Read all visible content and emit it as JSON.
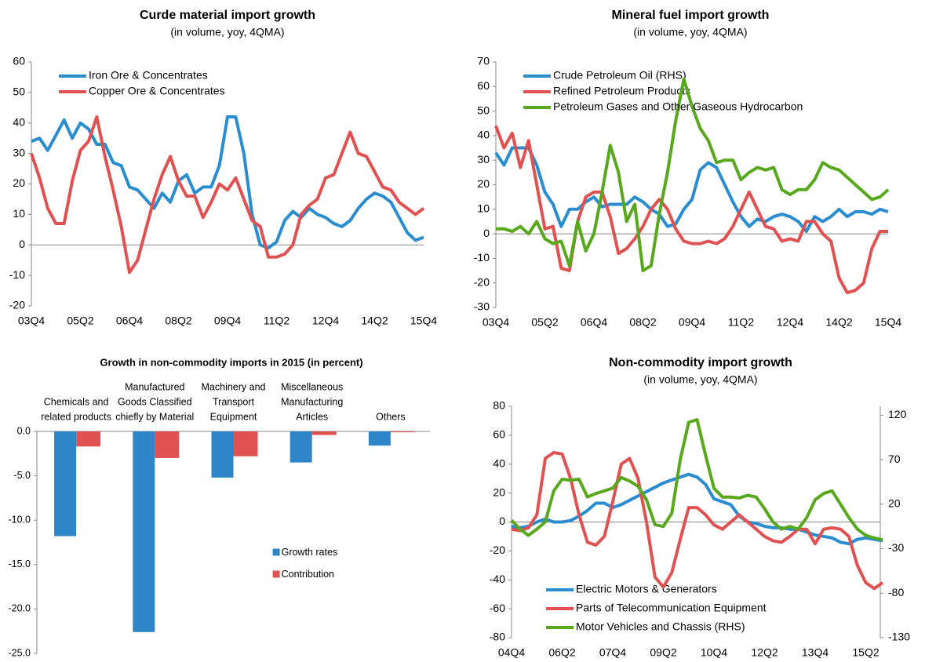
{
  "chart_data": [
    {
      "type": "line",
      "title": "Curde material import growth",
      "subtitle": "(in volume, yoy, 4QMA)",
      "categories": [
        "03Q4",
        null,
        null,
        null,
        null,
        null,
        "05Q2",
        null,
        null,
        null,
        null,
        null,
        "06Q4",
        null,
        null,
        null,
        null,
        null,
        "08Q2",
        null,
        null,
        null,
        null,
        null,
        "09Q4",
        null,
        null,
        null,
        null,
        null,
        "11Q2",
        null,
        null,
        null,
        null,
        null,
        "12Q4",
        null,
        null,
        null,
        null,
        null,
        "14Q2",
        null,
        null,
        null,
        null,
        null,
        "15Q4"
      ],
      "series": [
        {
          "name": "Iron Ore & Concentrates",
          "color": "#2a8dd0",
          "values": [
            34,
            35,
            31,
            36,
            41,
            35,
            40,
            38,
            33,
            33,
            27,
            26,
            19,
            18,
            15,
            12,
            17,
            14,
            21,
            23,
            17,
            19,
            19,
            26,
            42,
            42,
            30,
            10,
            0,
            -1,
            1,
            8,
            11,
            9,
            12,
            10,
            9,
            7,
            6,
            8,
            12,
            15,
            17,
            16,
            14,
            9,
            4,
            1.5,
            2.5
          ]
        },
        {
          "name": "Copper Ore & Concentrates",
          "color": "#e05252",
          "values": [
            30,
            22,
            12,
            7,
            7,
            21,
            31,
            34,
            42,
            29,
            18,
            6,
            -9,
            -5,
            5,
            15,
            23,
            29,
            21,
            16,
            16,
            9,
            14,
            20,
            18,
            22,
            15,
            8,
            6,
            -4,
            -4,
            -3,
            0,
            10,
            13,
            15,
            22,
            23,
            30,
            37,
            30,
            29,
            24,
            19,
            18,
            14,
            12,
            10,
            12
          ]
        }
      ],
      "ylim": [
        -20,
        60
      ],
      "yticks": [
        -20,
        -10,
        0,
        10,
        20,
        30,
        40,
        50,
        60
      ],
      "legend": "upper left"
    },
    {
      "type": "line",
      "title": "Mineral fuel import growth",
      "subtitle": "(in volume, yoy, 4QMA)",
      "categories": [
        "03Q4",
        null,
        null,
        null,
        null,
        null,
        "05Q2",
        null,
        null,
        null,
        null,
        null,
        "06Q4",
        null,
        null,
        null,
        null,
        null,
        "08Q2",
        null,
        null,
        null,
        null,
        null,
        "09Q4",
        null,
        null,
        null,
        null,
        null,
        "11Q2",
        null,
        null,
        null,
        null,
        null,
        "12Q4",
        null,
        null,
        null,
        null,
        null,
        "14Q2",
        null,
        null,
        null,
        null,
        null,
        "15Q4"
      ],
      "series": [
        {
          "name": "Crude Petroleum Oil (RHS)",
          "color": "#2a8dd0",
          "values": [
            33,
            28,
            35,
            35,
            35,
            28,
            17,
            12,
            3,
            10,
            10,
            13,
            15,
            11,
            12,
            12,
            12,
            15,
            13,
            10,
            8,
            3,
            4,
            10,
            14,
            26,
            29,
            27,
            20,
            13,
            7,
            3,
            6,
            5,
            7,
            8,
            7,
            5,
            1,
            7,
            5,
            7,
            10,
            7,
            9,
            9,
            8,
            10,
            9
          ]
        },
        {
          "name": "Refined Petroleum Products",
          "color": "#e05252",
          "values": [
            44,
            35,
            41,
            27,
            38,
            20,
            2,
            3,
            -14,
            -15,
            5,
            15,
            17,
            17,
            7,
            -8,
            -6,
            -2,
            3,
            10,
            14,
            10,
            2,
            -3,
            -4,
            -4,
            -3,
            -4,
            -2,
            3,
            10,
            17,
            10,
            3,
            2,
            -3,
            -2,
            -3,
            5,
            5,
            0,
            -3,
            -18,
            -24,
            -23,
            -20,
            -6,
            1,
            1
          ]
        },
        {
          "name": "Petroleum Gases and Other Gaseous Hydrocarbon",
          "color": "#58a81d",
          "values": [
            2,
            2,
            1,
            3,
            0,
            5,
            -2,
            -4,
            -3,
            -13,
            5,
            -7,
            0,
            17,
            36,
            25,
            5,
            12,
            -15,
            -13,
            8,
            25,
            46,
            63,
            52,
            43,
            38,
            29,
            30,
            30,
            22,
            25,
            27,
            26,
            27,
            18,
            16,
            18,
            18,
            22,
            29,
            27,
            26,
            23,
            20,
            17,
            14,
            15,
            18
          ]
        }
      ],
      "ylim": [
        -30,
        70
      ],
      "yticks": [
        -30,
        -20,
        -10,
        0,
        10,
        20,
        30,
        40,
        50,
        60,
        70
      ],
      "legend": "upper left"
    },
    {
      "type": "bar",
      "title": "Growth in non-commodity imports in 2015 (in percent)",
      "categories": [
        [
          "Chemicals and",
          "related products"
        ],
        [
          "Manufactured",
          "Goods Classified",
          "chiefly by Material"
        ],
        [
          "Machinery and",
          "Transport",
          "Equipment"
        ],
        [
          "Miscellaneous",
          "Manufacturing",
          "Articles"
        ],
        [
          "Others"
        ]
      ],
      "series": [
        {
          "name": "Growth rates",
          "color": "#2e86c8",
          "values": [
            -11.8,
            -22.6,
            -5.2,
            -3.5,
            -1.6
          ]
        },
        {
          "name": "Contribution",
          "color": "#e05252",
          "values": [
            -1.7,
            -3.0,
            -2.8,
            -0.4,
            -0.1
          ]
        }
      ],
      "ylim": [
        -25,
        0
      ],
      "yticks": [
        {
          "value": -25,
          "label": "-25.0"
        },
        {
          "value": -20,
          "label": "-20.0"
        },
        {
          "value": -15,
          "label": "-15.0"
        },
        {
          "value": -10,
          "label": "-10.0"
        },
        {
          "value": -5,
          "label": "-5.0"
        },
        {
          "value": 0,
          "label": "0.0"
        }
      ],
      "legend": "center right"
    },
    {
      "type": "line",
      "title": "Non-commodity import growth",
      "subtitle": "(in volume, yoy, 4QMA)",
      "categories": [
        "04Q4",
        null,
        null,
        null,
        null,
        null,
        "06Q2",
        null,
        null,
        null,
        null,
        null,
        "07Q4",
        null,
        null,
        null,
        null,
        null,
        "09Q2",
        null,
        null,
        null,
        null,
        null,
        "10Q4",
        null,
        null,
        null,
        null,
        null,
        "12Q2",
        null,
        null,
        null,
        null,
        null,
        "13Q4",
        null,
        null,
        null,
        null,
        null,
        "15Q2",
        null,
        null
      ],
      "series": [
        {
          "name": "Electric Motors & Generators",
          "color": "#2a8dd0",
          "values": [
            -3,
            -4,
            -3,
            0,
            2,
            0,
            0,
            1,
            4,
            8,
            13,
            13,
            10,
            12,
            15,
            18,
            21,
            24,
            27,
            29,
            31,
            33,
            31,
            26,
            16,
            14,
            12,
            4,
            0,
            -1,
            -3,
            -4,
            -4,
            -5,
            -5,
            -7,
            -9,
            -10,
            -11,
            -14,
            -15,
            -12,
            -11,
            -12,
            -13
          ]
        },
        {
          "name": "Parts of Telecommunication Equipment",
          "color": "#e05252",
          "values": [
            -5,
            -6,
            -4,
            5,
            44,
            48,
            47,
            30,
            5,
            -14,
            -16,
            -10,
            14,
            40,
            44,
            30,
            0,
            -38,
            -45,
            -35,
            -12,
            10,
            10,
            5,
            -2,
            -5,
            0,
            5,
            0,
            -5,
            -10,
            -13,
            -14,
            -10,
            -5,
            -5,
            -15,
            -5,
            -4,
            -5,
            -10,
            -30,
            -42,
            -46,
            -42
          ]
        },
        {
          "name": "Motor Vehicles and Chassis (RHS)",
          "color": "#58a81d",
          "axis": "y2",
          "values": [
            2,
            -8,
            -15,
            -8,
            0,
            35,
            48,
            47,
            48,
            28,
            32,
            35,
            38,
            50,
            46,
            40,
            25,
            -3,
            -5,
            10,
            70,
            112,
            115,
            75,
            38,
            28,
            28,
            27,
            30,
            28,
            15,
            0,
            -8,
            -5,
            -8,
            5,
            25,
            32,
            35,
            20,
            5,
            -8,
            -15,
            -18,
            -20
          ]
        }
      ],
      "ylim": [
        -80,
        80
      ],
      "yticks": [
        -80,
        -60,
        -40,
        -20,
        0,
        20,
        40,
        60,
        80
      ],
      "y2lim": [
        -130,
        130
      ],
      "y2ticks": [
        -130,
        -80,
        -30,
        20,
        70,
        120
      ],
      "legend": "lower left"
    }
  ]
}
